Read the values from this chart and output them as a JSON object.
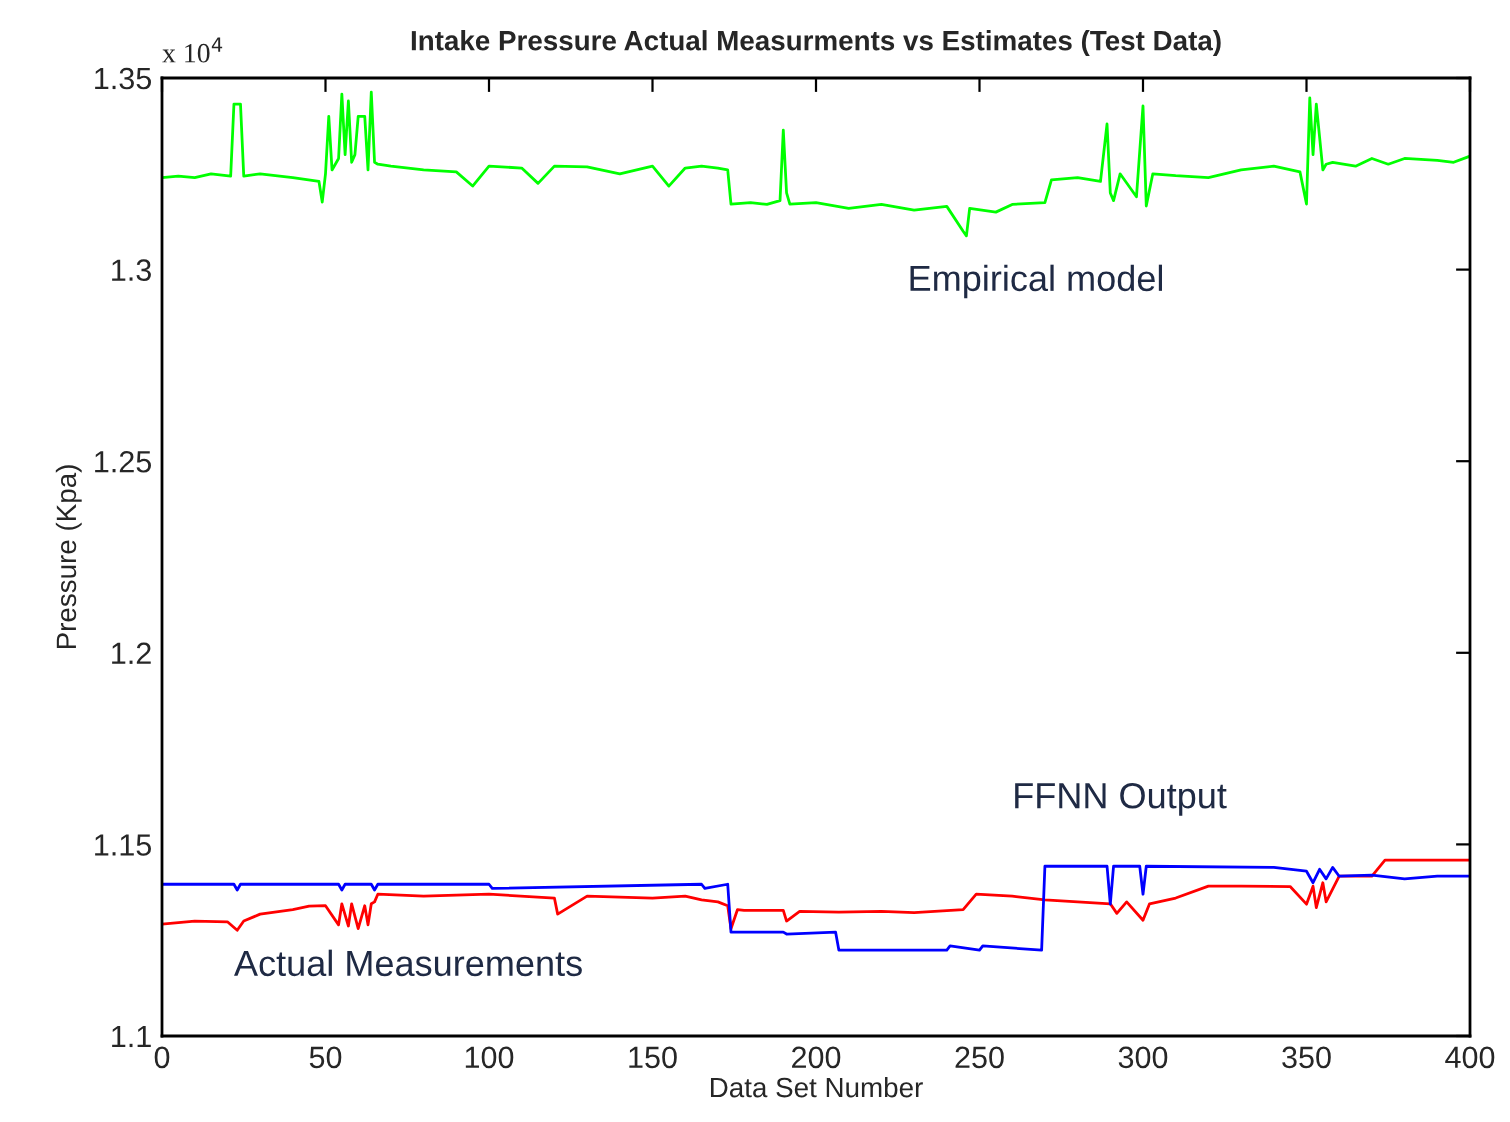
{
  "chart_data": {
    "type": "line",
    "title": "Intake Pressure Actual Measurments vs Estimates (Test Data)",
    "xlabel": "Data Set Number",
    "ylabel": "Pressure (Kpa)",
    "xlim": [
      0,
      400
    ],
    "xticks": [
      0,
      50,
      100,
      150,
      200,
      250,
      300,
      350,
      400
    ],
    "ylim": [
      1.1,
      1.35
    ],
    "yticks": [
      1.1,
      1.15,
      1.2,
      1.25,
      1.3,
      1.35
    ],
    "annotations": [
      "x 10$^{4}$"
    ],
    "grid": false,
    "legend": false,
    "marker": "none",
    "line_style": "solid",
    "series": [
      {
        "name": "Empirical model",
        "color": "#00ff00",
        "x": [
          0,
          5,
          10,
          15,
          21,
          22,
          24,
          25,
          30,
          40,
          48,
          49,
          50,
          51,
          52,
          54,
          55,
          56,
          57,
          58,
          59,
          60,
          62,
          63,
          64,
          65,
          66,
          70,
          80,
          90,
          95,
          100,
          110,
          115,
          120,
          130,
          140,
          150,
          155,
          160,
          165,
          170,
          173,
          174,
          180,
          185,
          189,
          190,
          191,
          192,
          200,
          210,
          220,
          230,
          240,
          245,
          246,
          247,
          255,
          260,
          270,
          272,
          280,
          287,
          289,
          290,
          291,
          293,
          298,
          300,
          301,
          303,
          310,
          320,
          330,
          340,
          348,
          350,
          351,
          352,
          353,
          355,
          356,
          358,
          365,
          370,
          375,
          380,
          390,
          395,
          400
        ],
        "values": [
          1.324,
          1.3244,
          1.324,
          1.325,
          1.3244,
          1.3432,
          1.3432,
          1.3244,
          1.325,
          1.324,
          1.323,
          1.3176,
          1.325,
          1.34,
          1.326,
          1.329,
          1.3458,
          1.33,
          1.344,
          1.328,
          1.33,
          1.34,
          1.34,
          1.326,
          1.3463,
          1.328,
          1.3275,
          1.327,
          1.326,
          1.3255,
          1.3218,
          1.327,
          1.3265,
          1.3225,
          1.327,
          1.3268,
          1.325,
          1.327,
          1.3218,
          1.3265,
          1.327,
          1.3265,
          1.326,
          1.3171,
          1.3175,
          1.317,
          1.318,
          1.3364,
          1.32,
          1.3171,
          1.3175,
          1.316,
          1.317,
          1.3155,
          1.3165,
          1.31,
          1.3088,
          1.316,
          1.315,
          1.317,
          1.3175,
          1.3234,
          1.324,
          1.323,
          1.338,
          1.32,
          1.318,
          1.325,
          1.319,
          1.3427,
          1.3166,
          1.325,
          1.3245,
          1.324,
          1.326,
          1.327,
          1.3255,
          1.3171,
          1.3448,
          1.33,
          1.3432,
          1.326,
          1.3275,
          1.328,
          1.327,
          1.329,
          1.3275,
          1.329,
          1.3285,
          1.328,
          1.3296
        ]
      },
      {
        "name": "Actual Measurements",
        "color": "#ff0000",
        "x": [
          0,
          10,
          20,
          23,
          25,
          30,
          40,
          45,
          50,
          54,
          55,
          57,
          58,
          60,
          62,
          63,
          64,
          65,
          66,
          80,
          100,
          120,
          121,
          130,
          150,
          160,
          165,
          170,
          173,
          174,
          176,
          178,
          190,
          191,
          195,
          207,
          220,
          230,
          245,
          249,
          260,
          270,
          280,
          290,
          292,
          295,
          300,
          302,
          310,
          320,
          330,
          345,
          350,
          352,
          353,
          355,
          356,
          360,
          370,
          374,
          380,
          390,
          400
        ],
        "values": [
          1.1292,
          1.13,
          1.1298,
          1.1276,
          1.13,
          1.1318,
          1.133,
          1.1339,
          1.134,
          1.129,
          1.1345,
          1.1287,
          1.1345,
          1.128,
          1.134,
          1.129,
          1.1345,
          1.135,
          1.137,
          1.1365,
          1.137,
          1.136,
          1.1318,
          1.1365,
          1.136,
          1.1365,
          1.1355,
          1.135,
          1.134,
          1.128,
          1.133,
          1.1328,
          1.1328,
          1.13,
          1.1325,
          1.1323,
          1.1325,
          1.1322,
          1.133,
          1.137,
          1.1365,
          1.1355,
          1.135,
          1.1345,
          1.132,
          1.135,
          1.1302,
          1.1345,
          1.136,
          1.1391,
          1.1391,
          1.139,
          1.1344,
          1.1391,
          1.1335,
          1.14,
          1.135,
          1.1417,
          1.1417,
          1.1459,
          1.1459,
          1.1459,
          1.1459
        ]
      },
      {
        "name": "FFNN Output",
        "color": "#0000ff",
        "x": [
          0,
          22,
          23,
          24,
          54,
          55,
          56,
          64,
          65,
          66,
          100,
          101,
          165,
          166,
          173,
          174,
          190,
          191,
          206,
          207,
          240,
          241,
          250,
          251,
          269,
          270,
          289,
          290,
          291,
          299,
          300,
          301,
          340,
          350,
          352,
          354,
          356,
          358,
          360,
          370,
          380,
          390,
          400
        ],
        "values": [
          1.1396,
          1.1396,
          1.1381,
          1.1396,
          1.1396,
          1.1381,
          1.1396,
          1.1396,
          1.1381,
          1.1396,
          1.1396,
          1.1385,
          1.1396,
          1.1385,
          1.1396,
          1.1271,
          1.1271,
          1.1266,
          1.1271,
          1.1224,
          1.1224,
          1.1235,
          1.1224,
          1.1235,
          1.1224,
          1.1443,
          1.1443,
          1.1344,
          1.1443,
          1.1443,
          1.137,
          1.1443,
          1.144,
          1.143,
          1.14,
          1.1435,
          1.141,
          1.144,
          1.1417,
          1.142,
          1.141,
          1.1417,
          1.1417
        ]
      }
    ]
  }
}
